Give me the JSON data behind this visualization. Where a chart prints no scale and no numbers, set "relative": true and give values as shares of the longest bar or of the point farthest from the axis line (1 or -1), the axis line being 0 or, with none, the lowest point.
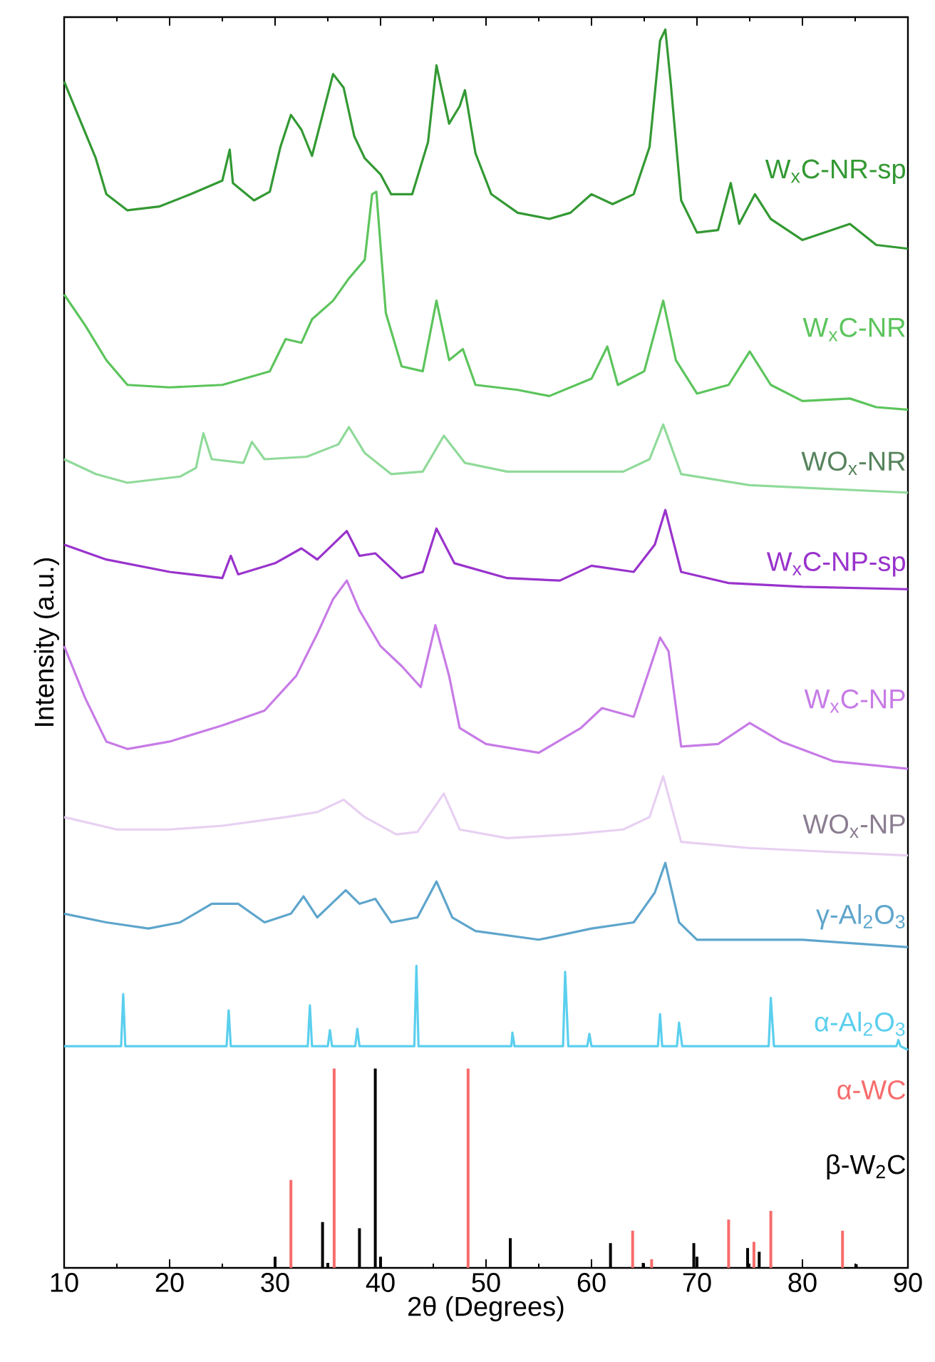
{
  "chart_data": {
    "type": "line",
    "relative": true,
    "xlabel": "2θ (Degrees)",
    "ylabel": "Intensity (a.u.)",
    "xlim": [
      10,
      90
    ],
    "xticks": [
      10,
      20,
      30,
      40,
      50,
      60,
      70,
      80,
      90
    ],
    "series": [
      {
        "name": "W$_{x}$C-NR-sp",
        "color": "#339933",
        "x": [
          10,
          11.5,
          13,
          14,
          16,
          19,
          22,
          25,
          25.7,
          26,
          28,
          29.5,
          30.5,
          31.5,
          32.5,
          33.5,
          34.5,
          35.5,
          36.5,
          37.5,
          38.5,
          40,
          41,
          43,
          44.5,
          45.3,
          46.5,
          47.5,
          48,
          49,
          50.5,
          53,
          56,
          58,
          60,
          62,
          64,
          65.5,
          66.5,
          67,
          67.5,
          68.5,
          70,
          72,
          73.2,
          74,
          75.5,
          77,
          80,
          84.5,
          87,
          90
        ],
        "values": [
          0.958,
          0.927,
          0.896,
          0.867,
          0.854,
          0.857,
          0.867,
          0.878,
          0.903,
          0.876,
          0.862,
          0.869,
          0.905,
          0.931,
          0.919,
          0.898,
          0.931,
          0.964,
          0.953,
          0.914,
          0.896,
          0.883,
          0.867,
          0.867,
          0.909,
          0.971,
          0.924,
          0.938,
          0.951,
          0.9,
          0.867,
          0.852,
          0.847,
          0.852,
          0.867,
          0.859,
          0.867,
          0.905,
          0.991,
          1.0,
          0.958,
          0.862,
          0.836,
          0.838,
          0.876,
          0.843,
          0.867,
          0.847,
          0.83,
          0.843,
          0.826,
          0.823
        ]
      },
      {
        "name": "W$_{x}$C-NR",
        "color": "#5cc45c",
        "x": [
          10,
          12,
          14,
          16,
          20,
          25,
          29.5,
          31,
          32.5,
          33.5,
          35.5,
          37,
          38.5,
          39.2,
          39.6,
          40.5,
          42,
          44,
          45.3,
          46.5,
          47.8,
          49,
          53,
          56,
          60,
          61.5,
          62.5,
          65,
          66.8,
          68,
          70,
          73,
          75,
          77,
          80,
          84.5,
          87,
          90
        ],
        "values": [
          0.786,
          0.761,
          0.733,
          0.713,
          0.711,
          0.713,
          0.724,
          0.75,
          0.747,
          0.766,
          0.781,
          0.799,
          0.814,
          0.867,
          0.869,
          0.771,
          0.728,
          0.724,
          0.781,
          0.733,
          0.742,
          0.713,
          0.709,
          0.704,
          0.718,
          0.744,
          0.713,
          0.724,
          0.781,
          0.733,
          0.706,
          0.713,
          0.74,
          0.713,
          0.7,
          0.702,
          0.695,
          0.693
        ]
      },
      {
        "name": "WO$_{x}$-NR",
        "color": "#90da9a",
        "x": [
          10,
          13,
          16,
          21,
          22.5,
          23.2,
          24,
          27,
          27.8,
          29,
          33,
          36,
          37,
          38.5,
          41,
          44,
          46,
          48,
          52,
          58,
          63,
          65.5,
          66.8,
          68.5,
          75,
          90
        ],
        "values": [
          0.653,
          0.641,
          0.634,
          0.639,
          0.646,
          0.674,
          0.653,
          0.65,
          0.667,
          0.653,
          0.655,
          0.665,
          0.679,
          0.658,
          0.641,
          0.643,
          0.672,
          0.65,
          0.643,
          0.643,
          0.643,
          0.653,
          0.681,
          0.641,
          0.632,
          0.626
        ]
      },
      {
        "name": "W$_{x}$C-NP-sp",
        "color": "#9933cc",
        "x": [
          10,
          14,
          20,
          25,
          25.8,
          26.5,
          30,
          32.5,
          34,
          36.8,
          38,
          39.5,
          42,
          44,
          45.3,
          47,
          52,
          57,
          60,
          64,
          66,
          67,
          68.5,
          73,
          80,
          90
        ],
        "values": [
          0.584,
          0.572,
          0.562,
          0.557,
          0.575,
          0.56,
          0.569,
          0.581,
          0.572,
          0.595,
          0.575,
          0.577,
          0.557,
          0.562,
          0.597,
          0.569,
          0.557,
          0.555,
          0.567,
          0.562,
          0.584,
          0.612,
          0.562,
          0.553,
          0.55,
          0.548
        ]
      },
      {
        "name": "W$_{x}$C-NP",
        "color": "#c77be6",
        "x": [
          10,
          12,
          14,
          16,
          20,
          25,
          29,
          32,
          34,
          35.5,
          36.8,
          38,
          40,
          42,
          43.8,
          45.2,
          46.5,
          47.5,
          50,
          55,
          59,
          61,
          64,
          66.5,
          67.3,
          68.5,
          72,
          75,
          78,
          83,
          90
        ],
        "values": [
          0.502,
          0.46,
          0.425,
          0.419,
          0.425,
          0.438,
          0.45,
          0.478,
          0.512,
          0.54,
          0.555,
          0.531,
          0.502,
          0.486,
          0.469,
          0.519,
          0.478,
          0.436,
          0.423,
          0.416,
          0.436,
          0.452,
          0.445,
          0.509,
          0.498,
          0.421,
          0.423,
          0.44,
          0.425,
          0.409,
          0.403
        ]
      },
      {
        "name": "WO$_{x}$-NP",
        "color": "#e8d0f2",
        "x": [
          10,
          15,
          20,
          25,
          31,
          34,
          36.5,
          38.5,
          41.5,
          43.5,
          46,
          47.5,
          52,
          58,
          63,
          65.5,
          66.8,
          68.5,
          75,
          90
        ],
        "values": [
          0.364,
          0.354,
          0.354,
          0.357,
          0.364,
          0.368,
          0.378,
          0.364,
          0.35,
          0.352,
          0.383,
          0.354,
          0.347,
          0.35,
          0.354,
          0.364,
          0.397,
          0.344,
          0.339,
          0.333
        ]
      },
      {
        "name": "γ-Al$_{2}$O$_{3}$",
        "color": "#5ea5cc",
        "x": [
          10,
          14,
          18,
          21,
          24,
          26.5,
          29,
          31.5,
          32.7,
          34,
          36.7,
          38,
          39.5,
          41,
          43.5,
          45.3,
          46.8,
          49,
          55,
          60,
          64,
          66,
          67,
          68.3,
          70,
          80,
          90
        ],
        "values": [
          0.286,
          0.279,
          0.274,
          0.279,
          0.294,
          0.294,
          0.279,
          0.286,
          0.3,
          0.283,
          0.305,
          0.294,
          0.298,
          0.279,
          0.283,
          0.312,
          0.283,
          0.272,
          0.265,
          0.274,
          0.279,
          0.303,
          0.327,
          0.279,
          0.265,
          0.265,
          0.259
        ]
      },
      {
        "name": "α-Al$_{2}$O$_{3}$",
        "color": "#5bcfee",
        "x": [
          10,
          15.4,
          15.6,
          15.8,
          25.4,
          25.6,
          25.8,
          33.1,
          33.3,
          33.5,
          35,
          35.2,
          35.4,
          37.6,
          37.8,
          38,
          43.2,
          43.4,
          43.6,
          52.4,
          52.5,
          52.7,
          57.3,
          57.5,
          57.8,
          59.6,
          59.8,
          60,
          66.3,
          66.5,
          66.7,
          68.1,
          68.3,
          68.6,
          76.8,
          77,
          77.3,
          88.9,
          89.1,
          89.3,
          90
        ],
        "values": [
          0.179,
          0.179,
          0.221,
          0.179,
          0.179,
          0.208,
          0.179,
          0.179,
          0.212,
          0.179,
          0.179,
          0.192,
          0.179,
          0.179,
          0.193,
          0.179,
          0.179,
          0.244,
          0.179,
          0.179,
          0.19,
          0.179,
          0.179,
          0.239,
          0.179,
          0.179,
          0.189,
          0.179,
          0.179,
          0.205,
          0.179,
          0.179,
          0.198,
          0.179,
          0.179,
          0.218,
          0.179,
          0.179,
          0.184,
          0.179,
          0.176
        ]
      },
      {
        "name": "α-WC",
        "type": "bar",
        "color": "#f76c6c",
        "x": [
          31.5,
          35.6,
          48.3,
          63.9,
          65.7,
          73.0,
          75.4,
          77.0,
          83.8
        ],
        "values": [
          0.071,
          0.161,
          0.161,
          0.03,
          0.007,
          0.039,
          0.021,
          0.046,
          0.03
        ]
      },
      {
        "name": "β-W$_{2}$C",
        "type": "bar",
        "color": "#000000",
        "x": [
          30.0,
          34.5,
          35.0,
          38.0,
          39.5,
          40.0,
          52.3,
          61.8,
          64.9,
          69.7,
          70.0,
          74.8,
          75.9,
          85.1
        ],
        "values": [
          0.009,
          0.037,
          0.004,
          0.032,
          0.161,
          0.009,
          0.024,
          0.02,
          0.004,
          0.02,
          0.009,
          0.016,
          0.013,
          0.003
        ]
      }
    ]
  }
}
